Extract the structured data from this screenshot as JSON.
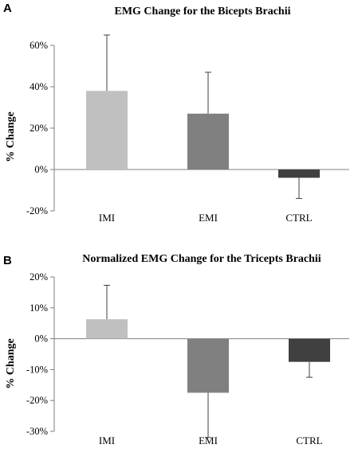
{
  "chart_data": [
    {
      "panel": "A",
      "type": "bar",
      "title": "EMG Change for the Bicepts Brachii",
      "ylabel": "% Change",
      "xlabel": "",
      "categories": [
        "IMI",
        "EMI",
        "CTRL"
      ],
      "values": [
        38,
        27,
        -4
      ],
      "error_plus": [
        27,
        20,
        0
      ],
      "error_minus": [
        0,
        0,
        10
      ],
      "ylim": [
        -20,
        60
      ],
      "yticks": [
        -20,
        0,
        20,
        40,
        60
      ],
      "ytick_labels": [
        "-20%",
        "0%",
        "20%",
        "40%",
        "60%"
      ],
      "colors": [
        "#c0c0c0",
        "#808080",
        "#404040"
      ],
      "grid": false,
      "legend": "none"
    },
    {
      "panel": "B",
      "type": "bar",
      "title": "Normalized EMG Change for the Tricepts Brachii",
      "ylabel": "% Change",
      "xlabel": "",
      "categories": [
        "IMI",
        "EMI",
        "CTRL"
      ],
      "values": [
        6.3,
        -17.5,
        -7.5
      ],
      "error_plus": [
        11,
        0,
        0
      ],
      "error_minus": [
        0,
        14.5,
        5
      ],
      "ylim": [
        -30,
        20
      ],
      "yticks": [
        -30,
        -20,
        -10,
        0,
        10,
        20
      ],
      "ytick_labels": [
        "-30%",
        "-20%",
        "-10%",
        "0%",
        "10%",
        "20%"
      ],
      "colors": [
        "#c0c0c0",
        "#808080",
        "#404040"
      ],
      "grid": false,
      "legend": "none"
    }
  ]
}
